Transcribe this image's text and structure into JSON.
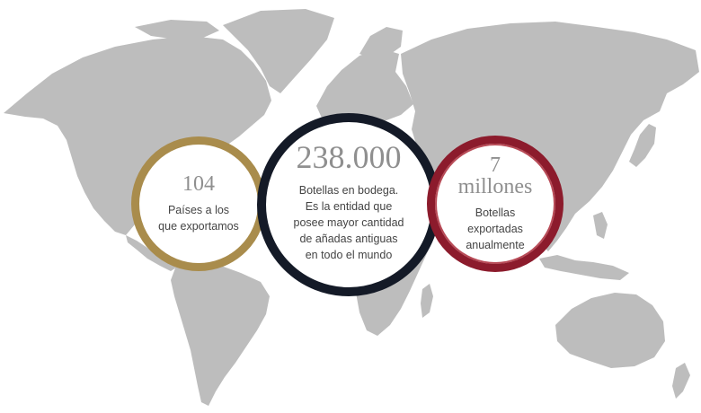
{
  "colors": {
    "map_land": "#bdbdbd",
    "gold": "#a98c4c",
    "navy": "#141a27",
    "burgundy": "#8c1b2c",
    "number_text": "#8f8f8f",
    "body_text": "#444444"
  },
  "stats": {
    "countries": {
      "number": "104",
      "desc_line1": "Países a los",
      "desc_line2": "que exportamos"
    },
    "bottles": {
      "number": "238.000",
      "desc_line1": "Botellas en bodega.",
      "desc_line2": "Es la entidad que",
      "desc_line3": "posee mayor cantidad",
      "desc_line4": "de añadas antiguas",
      "desc_line5": "en todo el mundo"
    },
    "exported": {
      "number": "7",
      "unit": "millones",
      "desc_line1": "Botellas",
      "desc_line2": "exportadas",
      "desc_line3": "anualmente"
    }
  }
}
